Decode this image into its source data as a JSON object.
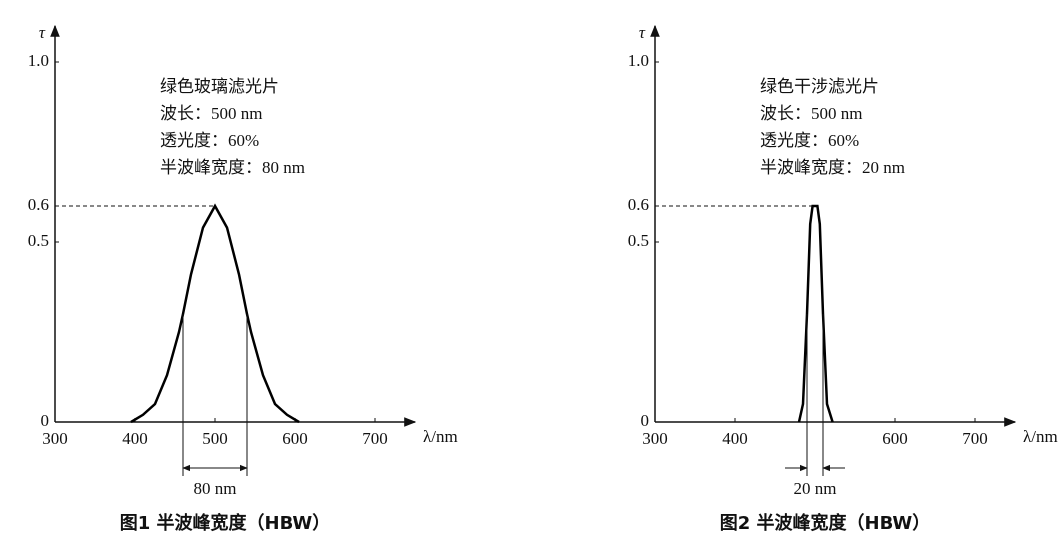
{
  "chart_data": [
    {
      "type": "line",
      "title": "图1 半波峰宽度（HBW）",
      "x_label": "λ/nm",
      "y_label": "τ",
      "annotations": [
        "绿色玻璃滤光片",
        "波长：500 nm",
        "透光度：60%",
        "半波峰宽度：80 nm"
      ],
      "x": [
        395,
        410,
        425,
        440,
        455,
        460,
        470,
        485,
        500,
        515,
        530,
        540,
        545,
        560,
        575,
        590,
        605
      ],
      "series": [
        {
          "color": "#000000",
          "values": [
            0,
            0.02,
            0.05,
            0.13,
            0.25,
            0.3,
            0.41,
            0.54,
            0.6,
            0.54,
            0.41,
            0.3,
            0.25,
            0.13,
            0.05,
            0.02,
            0
          ]
        }
      ],
      "xlim": [
        300,
        750
      ],
      "xticks": [
        300,
        400,
        500,
        600,
        700
      ],
      "ylim": [
        0,
        1.1
      ],
      "yticks": [
        0,
        0.5,
        0.6,
        {
          "value": 1,
          "label": "1.0"
        }
      ],
      "hbw": {
        "edges": [
          460,
          540
        ],
        "level": 0.3,
        "label": "80 nm"
      }
    },
    {
      "type": "line",
      "title": "图2 半波峰宽度（HBW）",
      "x_label": "λ/nm",
      "y_label": "τ",
      "annotations": [
        "绿色干涉滤光片",
        "波长：500 nm",
        "透光度：60%",
        "半波峰宽度：20 nm"
      ],
      "x": [
        480,
        485,
        490,
        494,
        497,
        500,
        503,
        506,
        510,
        515,
        522
      ],
      "series": [
        {
          "color": "#000000",
          "values": [
            0,
            0.05,
            0.3,
            0.55,
            0.6,
            0.6,
            0.6,
            0.55,
            0.3,
            0.05,
            0
          ]
        }
      ],
      "xlim": [
        300,
        750
      ],
      "xticks": [
        300,
        400,
        600,
        700
      ],
      "ylim": [
        0,
        1.1
      ],
      "yticks": [
        0,
        0.5,
        0.6,
        {
          "value": 1,
          "label": "1.0"
        }
      ],
      "hbw": {
        "edges": [
          490,
          510
        ],
        "level": 0.3,
        "label": "20 nm"
      }
    }
  ]
}
